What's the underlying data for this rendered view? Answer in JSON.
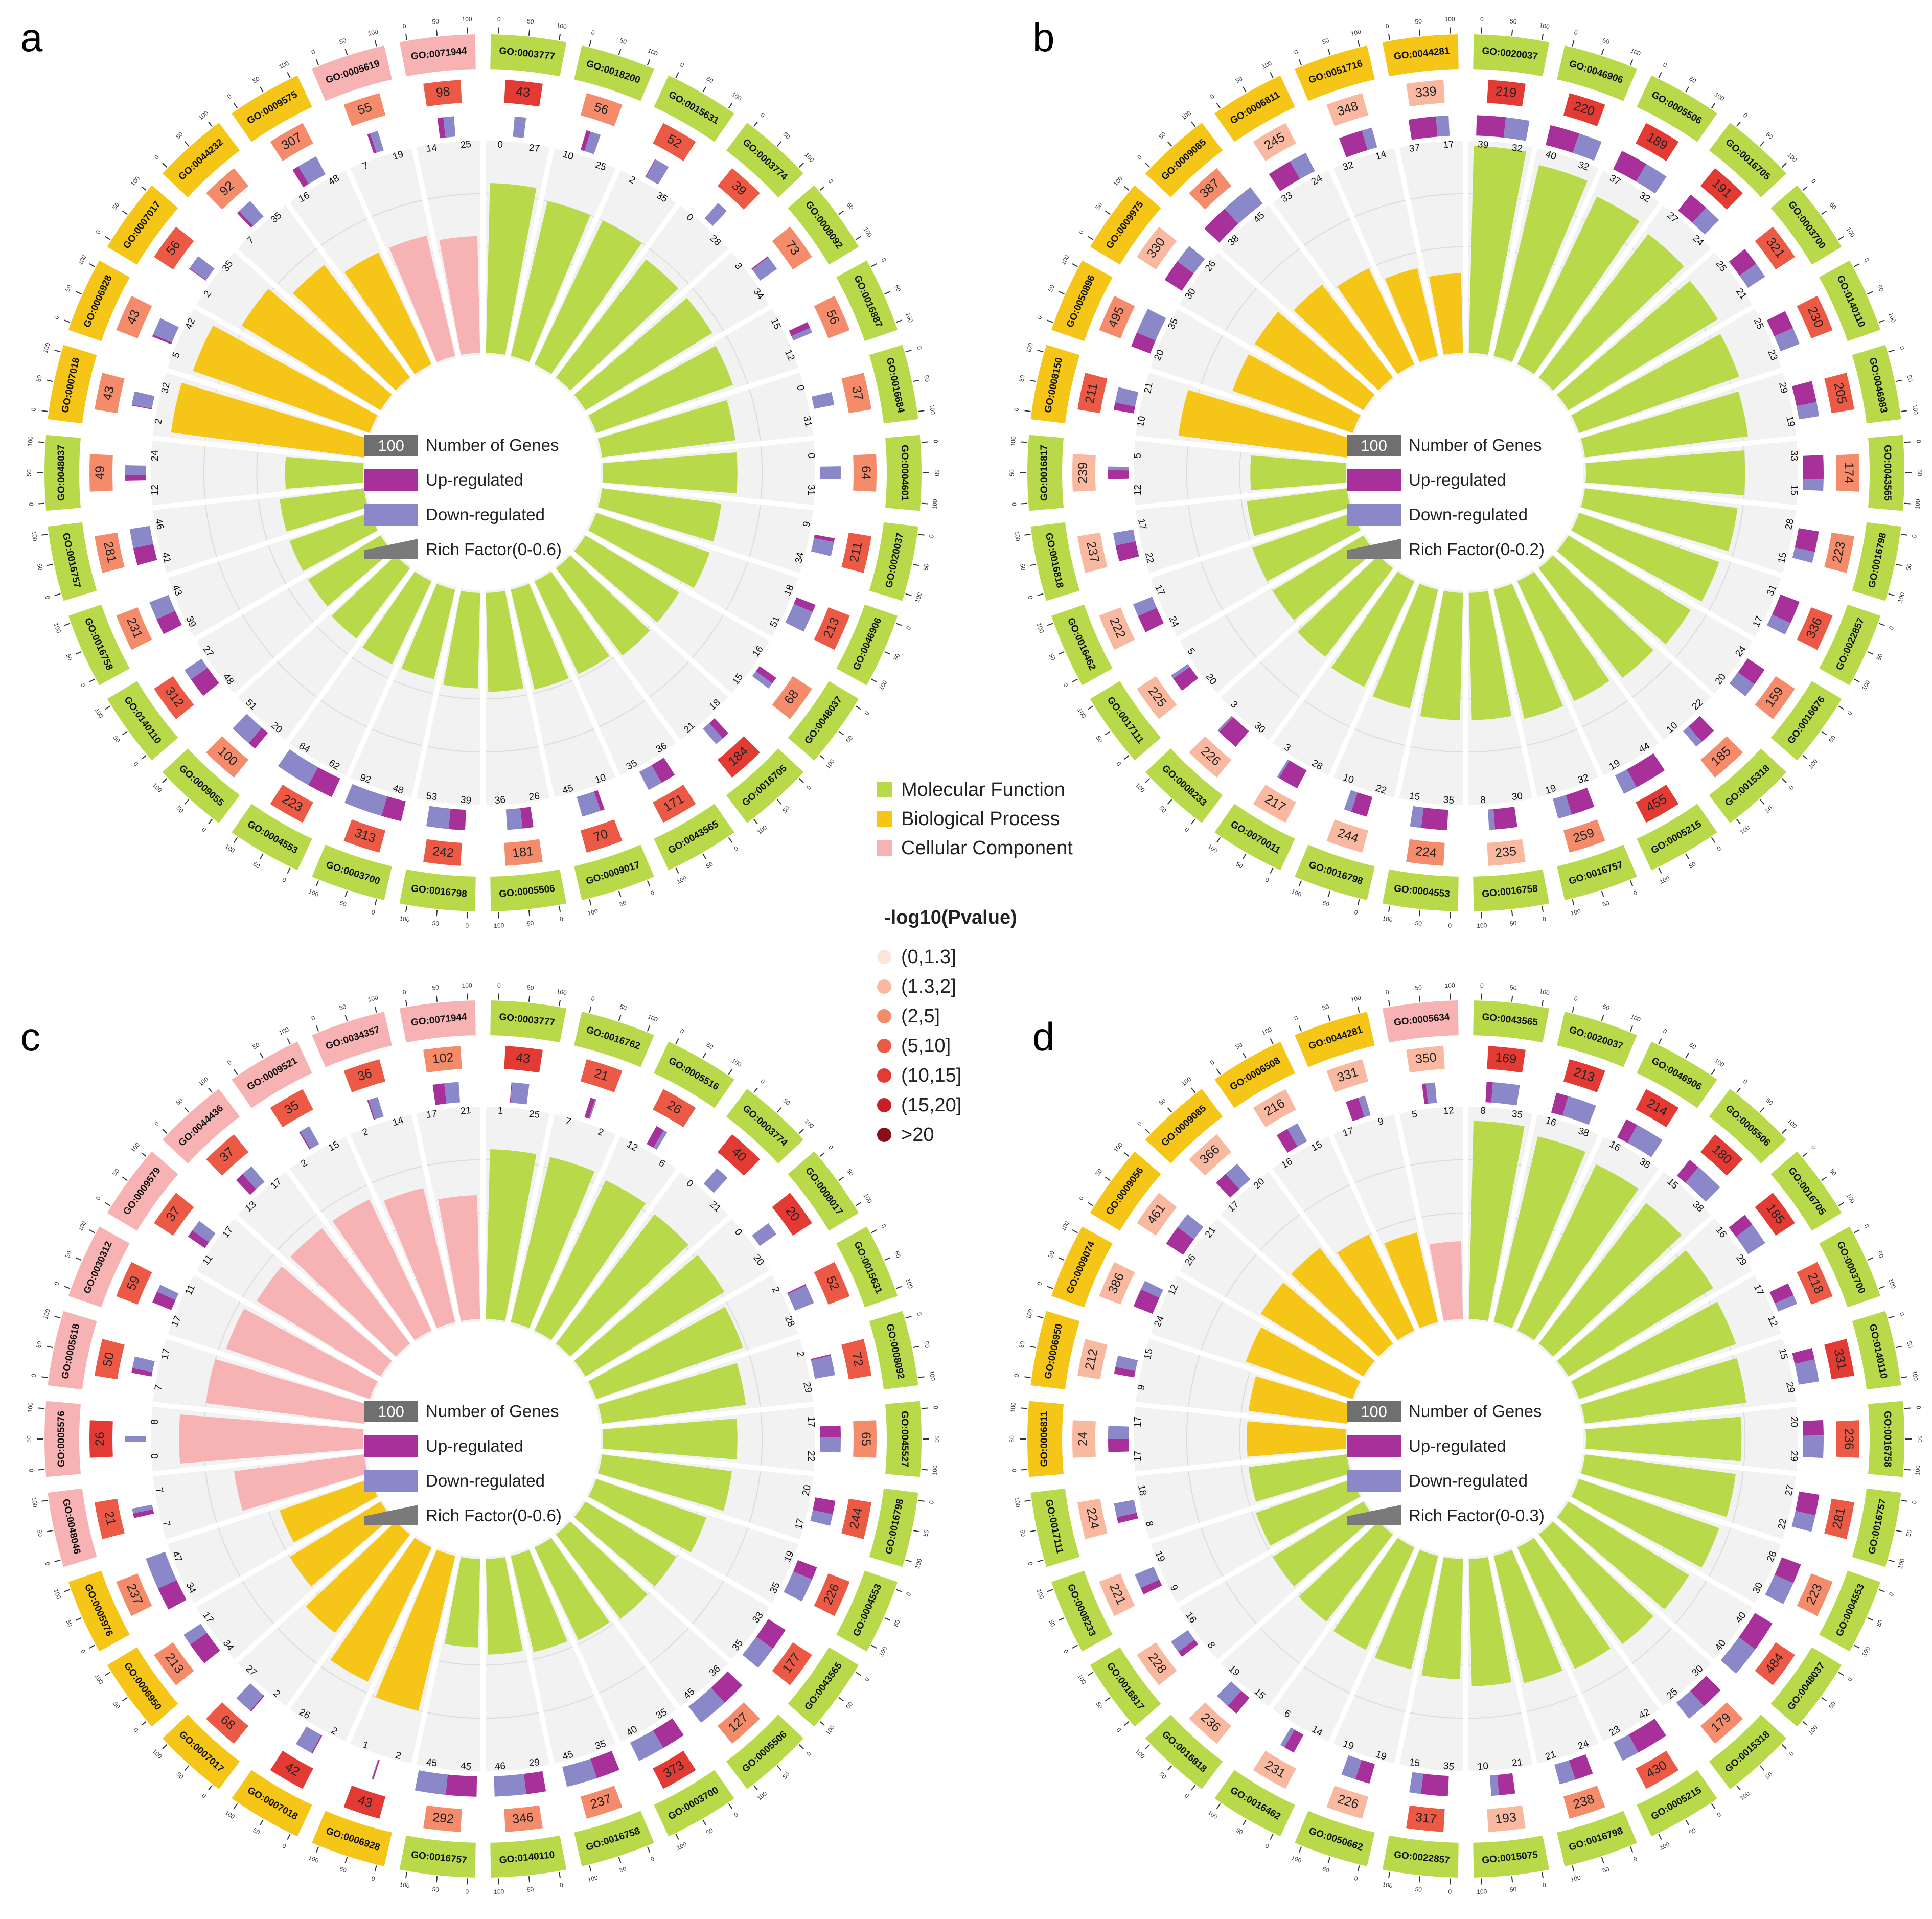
{
  "legend": {
    "categories": [
      {
        "label": "Molecular Function",
        "color": "#b8d94a"
      },
      {
        "label": "Biological Process",
        "color": "#f5c518"
      },
      {
        "label": "Cellular Component",
        "color": "#f7b3b3"
      }
    ],
    "pvalue_title": "-log10(Pvalue)",
    "pvalue_bins": [
      {
        "label": "(0,1.3]",
        "color": "#fde5dc"
      },
      {
        "label": "(1.3,2]",
        "color": "#f9b9a0"
      },
      {
        "label": "(2,5]",
        "color": "#f48b6a"
      },
      {
        "label": "(5,10]",
        "color": "#ec5a45"
      },
      {
        "label": "(10,15]",
        "color": "#e33a33"
      },
      {
        "label": "(15,20]",
        "color": "#c81e27"
      },
      {
        "label": ">20",
        "color": "#8b0e17"
      }
    ]
  },
  "center_legend": {
    "number_box": "100",
    "number_label": "Number of Genes",
    "up_label": "Up-regulated",
    "down_label": "Down-regulated",
    "up_color": "#a8309a",
    "down_color": "#8a88c8",
    "rich_color": "#7a7a7a"
  },
  "chart_data": [
    {
      "panel": "a",
      "type": "circular-bar",
      "rich_factor_label": "Rich Factor(0-0.6)",
      "rich_max": 0.6,
      "categories": [
        "GO:0003777",
        "GO:0018200",
        "GO:0015631",
        "GO:0003774",
        "GO:0008092",
        "GO:0016887",
        "GO:0016684",
        "GO:0004601",
        "GO:0020037",
        "GO:0046906",
        "GO:0048037",
        "GO:0016705",
        "GO:0043565",
        "GO:0009017",
        "GO:0005506",
        "GO:0016798",
        "GO:0003700",
        "GO:0004553",
        "GO:0009055",
        "GO:0140110",
        "GO:0016758",
        "GO:0016757",
        "GO:0048037",
        "GO:0007018",
        "GO:0006928",
        "GO:0007017",
        "GO:0044232",
        "GO:0009575",
        "GO:0005619",
        "GO:0071944"
      ],
      "ontology": [
        "MF",
        "MF",
        "MF",
        "MF",
        "MF",
        "MF",
        "MF",
        "MF",
        "MF",
        "MF",
        "MF",
        "MF",
        "MF",
        "MF",
        "MF",
        "MF",
        "MF",
        "MF",
        "MF",
        "MF",
        "MF",
        "MF",
        "MF",
        "BP",
        "BP",
        "BP",
        "BP",
        "BP",
        "CC",
        "CC"
      ],
      "total_genes": [
        43,
        56,
        52,
        39,
        73,
        56,
        37,
        64,
        211,
        213,
        68,
        184,
        171,
        70,
        181,
        242,
        313,
        223,
        100,
        312,
        231,
        281,
        49,
        43,
        43,
        56,
        92,
        307,
        55,
        98
      ],
      "pvalue_bin": [
        4,
        2,
        3,
        3,
        2,
        2,
        2,
        2,
        3,
        3,
        2,
        4,
        3,
        3,
        2,
        3,
        3,
        3,
        2,
        3,
        2,
        2,
        2,
        2,
        2,
        3,
        2,
        2,
        2,
        3
      ],
      "up": [
        0,
        10,
        2,
        0,
        3,
        15,
        0,
        0,
        9,
        18,
        16,
        18,
        36,
        10,
        26,
        39,
        48,
        62,
        20,
        48,
        39,
        41,
        12,
        2,
        5,
        2,
        7,
        16,
        7,
        14
      ],
      "down": [
        27,
        25,
        35,
        28,
        34,
        12,
        31,
        31,
        34,
        51,
        15,
        21,
        35,
        45,
        36,
        53,
        92,
        84,
        51,
        27,
        43,
        46,
        24,
        32,
        42,
        35,
        35,
        48,
        19,
        25
      ],
      "rich_factor": [
        0.48,
        0.45,
        0.45,
        0.42,
        0.42,
        0.41,
        0.38,
        0.38,
        0.34,
        0.34,
        0.31,
        0.31,
        0.29,
        0.29,
        0.28,
        0.27,
        0.26,
        0.26,
        0.25,
        0.24,
        0.24,
        0.24,
        0.22,
        0.55,
        0.53,
        0.46,
        0.4,
        0.35,
        0.35,
        0.33
      ],
      "ticks": [
        "0",
        "50",
        "100"
      ]
    },
    {
      "panel": "b",
      "type": "circular-bar",
      "rich_factor_label": "Rich Factor(0-0.2)",
      "rich_max": 0.2,
      "categories": [
        "GO:0020037",
        "GO:0046906",
        "GO:0005506",
        "GO:0016705",
        "GO:0003700",
        "GO:0140110",
        "GO:0046983",
        "GO:0043565",
        "GO:0016798",
        "GO:0022857",
        "GO:0016676",
        "GO:0015318",
        "GO:0005215",
        "GO:0016757",
        "GO:0016758",
        "GO:0004553",
        "GO:0016798",
        "GO:0070011",
        "GO:0008233",
        "GO:0017111",
        "GO:0016462",
        "GO:0016818",
        "GO:0016817",
        "GO:0008150",
        "GO:0050896",
        "GO:0009975",
        "GO:0009085",
        "GO:0006811",
        "GO:0051716",
        "GO:0044281"
      ],
      "ontology": [
        "MF",
        "MF",
        "MF",
        "MF",
        "MF",
        "MF",
        "MF",
        "MF",
        "MF",
        "MF",
        "MF",
        "MF",
        "MF",
        "MF",
        "MF",
        "MF",
        "MF",
        "MF",
        "MF",
        "MF",
        "MF",
        "MF",
        "MF",
        "BP",
        "BP",
        "BP",
        "BP",
        "BP",
        "BP",
        "BP"
      ],
      "total_genes": [
        219,
        220,
        189,
        191,
        321,
        230,
        205,
        174,
        223,
        336,
        159,
        185,
        455,
        259,
        235,
        224,
        244,
        217,
        226,
        225,
        222,
        237,
        239,
        211,
        495,
        330,
        387,
        245,
        348,
        339
      ],
      "pvalue_bin": [
        4,
        4,
        4,
        4,
        3,
        3,
        3,
        2,
        2,
        3,
        2,
        2,
        4,
        2,
        1,
        2,
        1,
        1,
        1,
        1,
        1,
        1,
        1,
        3,
        2,
        1,
        2,
        1,
        1,
        1
      ],
      "up": [
        39,
        40,
        37,
        27,
        25,
        25,
        29,
        33,
        28,
        31,
        24,
        22,
        44,
        32,
        30,
        35,
        22,
        28,
        30,
        20,
        24,
        22,
        12,
        10,
        20,
        30,
        38,
        33,
        32,
        37
      ],
      "down": [
        32,
        32,
        32,
        24,
        21,
        23,
        19,
        15,
        15,
        17,
        20,
        10,
        19,
        19,
        8,
        15,
        10,
        3,
        3,
        5,
        17,
        17,
        5,
        21,
        35,
        26,
        45,
        24,
        14,
        17
      ],
      "rich_factor": [
        0.195,
        0.185,
        0.175,
        0.17,
        0.165,
        0.16,
        0.155,
        0.15,
        0.145,
        0.14,
        0.135,
        0.13,
        0.125,
        0.125,
        0.12,
        0.12,
        0.115,
        0.11,
        0.105,
        0.1,
        0.1,
        0.095,
        0.09,
        0.16,
        0.12,
        0.12,
        0.11,
        0.1,
        0.085,
        0.075
      ],
      "ticks": [
        "0",
        "50",
        "100"
      ]
    },
    {
      "panel": "c",
      "type": "circular-bar",
      "rich_factor_label": "Rich Factor(0-0.6)",
      "rich_max": 0.6,
      "categories": [
        "GO:0003777",
        "GO:0016762",
        "GO:0005516",
        "GO:0003774",
        "GO:0008017",
        "GO:0015631",
        "GO:0008092",
        "GO:0045527",
        "GO:0016798",
        "GO:0004553",
        "GO:0043565",
        "GO:0005506",
        "GO:0003700",
        "GO:0016758",
        "GO:0140110",
        "GO:0016757",
        "GO:0006928",
        "GO:0007018",
        "GO:0007017",
        "GO:0006950",
        "GO:0005976",
        "GO:0048046",
        "GO:0005576",
        "GO:0005618",
        "GO:0030312",
        "GO:0009579",
        "GO:0044436",
        "GO:0009521",
        "GO:0034357",
        "GO:0071944"
      ],
      "ontology": [
        "MF",
        "MF",
        "MF",
        "MF",
        "MF",
        "MF",
        "MF",
        "MF",
        "MF",
        "MF",
        "MF",
        "MF",
        "MF",
        "MF",
        "MF",
        "MF",
        "BP",
        "BP",
        "BP",
        "BP",
        "BP",
        "CC",
        "CC",
        "CC",
        "CC",
        "CC",
        "CC",
        "CC",
        "CC",
        "CC"
      ],
      "total_genes": [
        43,
        21,
        26,
        40,
        20,
        52,
        72,
        65,
        244,
        226,
        177,
        127,
        373,
        237,
        346,
        292,
        43,
        42,
        68,
        213,
        237,
        21,
        26,
        50,
        59,
        37,
        37,
        35,
        36,
        102
      ],
      "pvalue_bin": [
        4,
        3,
        3,
        4,
        4,
        3,
        3,
        2,
        3,
        3,
        3,
        2,
        4,
        2,
        2,
        2,
        4,
        4,
        3,
        2,
        2,
        3,
        4,
        3,
        3,
        3,
        3,
        3,
        3,
        2
      ],
      "up": [
        1,
        7,
        12,
        0,
        0,
        2,
        2,
        17,
        20,
        19,
        33,
        36,
        35,
        35,
        29,
        45,
        2,
        2,
        2,
        34,
        34,
        7,
        0,
        7,
        17,
        11,
        13,
        2,
        2,
        17
      ],
      "down": [
        25,
        2,
        6,
        21,
        20,
        28,
        29,
        22,
        17,
        35,
        35,
        45,
        40,
        45,
        46,
        45,
        1,
        26,
        27,
        17,
        47,
        7,
        8,
        17,
        11,
        17,
        17,
        15,
        14,
        21
      ],
      "rich_factor": [
        0.48,
        0.48,
        0.47,
        0.46,
        0.46,
        0.44,
        0.41,
        0.38,
        0.37,
        0.33,
        0.3,
        0.3,
        0.29,
        0.28,
        0.27,
        0.25,
        0.45,
        0.42,
        0.35,
        0.3,
        0.27,
        0.37,
        0.52,
        0.45,
        0.43,
        0.41,
        0.41,
        0.41,
        0.39,
        0.35
      ],
      "ticks": [
        "0",
        "50",
        "100"
      ]
    },
    {
      "panel": "d",
      "type": "circular-bar",
      "rich_factor_label": "Rich Factor(0-0.3)",
      "rich_max": 0.3,
      "categories": [
        "GO:0043565",
        "GO:0020037",
        "GO:0046906",
        "GO:0005506",
        "GO:0016705",
        "GO:0003700",
        "GO:0140110",
        "GO:0016758",
        "GO:0016757",
        "GO:0004553",
        "GO:0048037",
        "GO:0015318",
        "GO:0005215",
        "GO:0016798",
        "GO:0015075",
        "GO:0022857",
        "GO:0050662",
        "GO:0016462",
        "GO:0016818",
        "GO:0016817",
        "GO:0008233",
        "GO:0017111",
        "GO:0006811",
        "GO:0006950",
        "GO:0009074",
        "GO:0009056",
        "GO:0009085",
        "GO:0006508",
        "GO:0044281",
        "GO:0005634"
      ],
      "ontology": [
        "MF",
        "MF",
        "MF",
        "MF",
        "MF",
        "MF",
        "MF",
        "MF",
        "MF",
        "MF",
        "MF",
        "MF",
        "MF",
        "MF",
        "MF",
        "MF",
        "MF",
        "MF",
        "MF",
        "MF",
        "MF",
        "MF",
        "BP",
        "BP",
        "BP",
        "BP",
        "BP",
        "BP",
        "BP",
        "CC"
      ],
      "total_genes": [
        169,
        213,
        214,
        180,
        185,
        218,
        331,
        236,
        281,
        223,
        484,
        179,
        430,
        238,
        193,
        317,
        226,
        231,
        236,
        228,
        221,
        224,
        24,
        212,
        386,
        461,
        366,
        216,
        331,
        350
      ],
      "pvalue_bin": [
        4,
        4,
        4,
        4,
        4,
        3,
        4,
        3,
        3,
        2,
        3,
        2,
        3,
        2,
        1,
        3,
        1,
        1,
        1,
        1,
        1,
        1,
        1,
        1,
        1,
        1,
        1,
        1,
        1,
        1
      ],
      "up": [
        8,
        16,
        16,
        15,
        16,
        17,
        15,
        20,
        27,
        26,
        40,
        30,
        42,
        24,
        21,
        35,
        19,
        14,
        15,
        8,
        9,
        8,
        17,
        9,
        24,
        26,
        17,
        16,
        17,
        5
      ],
      "down": [
        35,
        38,
        38,
        38,
        29,
        12,
        29,
        29,
        22,
        30,
        40,
        25,
        23,
        21,
        10,
        15,
        19,
        6,
        19,
        16,
        19,
        18,
        17,
        15,
        12,
        21,
        20,
        15,
        9,
        12
      ],
      "rich_factor": [
        0.28,
        0.27,
        0.26,
        0.25,
        0.24,
        0.235,
        0.23,
        0.22,
        0.215,
        0.21,
        0.2,
        0.195,
        0.19,
        0.185,
        0.18,
        0.17,
        0.165,
        0.16,
        0.155,
        0.15,
        0.145,
        0.14,
        0.14,
        0.14,
        0.16,
        0.17,
        0.17,
        0.15,
        0.13,
        0.11
      ],
      "ticks": [
        "0",
        "50",
        "100"
      ]
    }
  ]
}
